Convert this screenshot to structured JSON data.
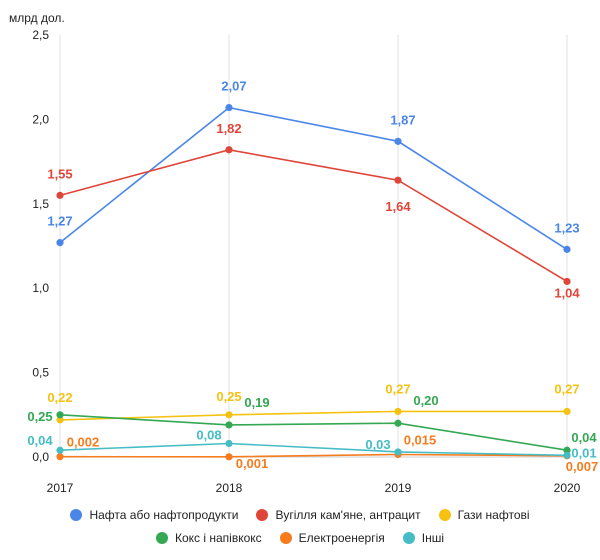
{
  "chart_data": {
    "type": "line",
    "ylabel": "млрд дол.",
    "x": [
      "2017",
      "2018",
      "2019",
      "2020"
    ],
    "y_ticks": [
      "0,0",
      "0,5",
      "1,0",
      "1,5",
      "2,0",
      "2,5"
    ],
    "ylim": [
      0,
      2.5
    ],
    "grid": "vertical",
    "legend_position": "bottom",
    "series": [
      {
        "name": "Нафта або нафтопродукти",
        "color": "#4a86e8",
        "values": [
          1.27,
          2.07,
          1.87,
          1.23
        ],
        "labels": [
          "1,27",
          "2,07",
          "1,87",
          "1,23"
        ]
      },
      {
        "name": "Вугілля кам'яне, антрацит",
        "color": "#e0453a",
        "values": [
          1.55,
          1.82,
          1.64,
          1.04
        ],
        "labels": [
          "1,55",
          "1,82",
          "1,64",
          "1,04"
        ]
      },
      {
        "name": "Гази нафтові",
        "color": "#f5c211",
        "values": [
          0.22,
          0.25,
          0.27,
          0.27
        ],
        "labels": [
          "0,22",
          "0,25",
          "0,27",
          "0,27"
        ]
      },
      {
        "name": "Кокс і напівкокс",
        "color": "#34a853",
        "values": [
          0.25,
          0.19,
          0.2,
          0.04
        ],
        "labels": [
          "0,25",
          "0,19",
          "0,20",
          "0,04"
        ]
      },
      {
        "name": "Електроенергія",
        "color": "#f57c1f",
        "values": [
          0.002,
          0.001,
          0.015,
          0.007
        ],
        "labels": [
          "0,002",
          "0,001",
          "0,015",
          "0,007"
        ]
      },
      {
        "name": "Інші",
        "color": "#46bdc6",
        "values": [
          0.04,
          0.08,
          0.03,
          0.01
        ],
        "labels": [
          "0,04",
          "0,08",
          "0,03",
          "0,01"
        ]
      }
    ]
  }
}
